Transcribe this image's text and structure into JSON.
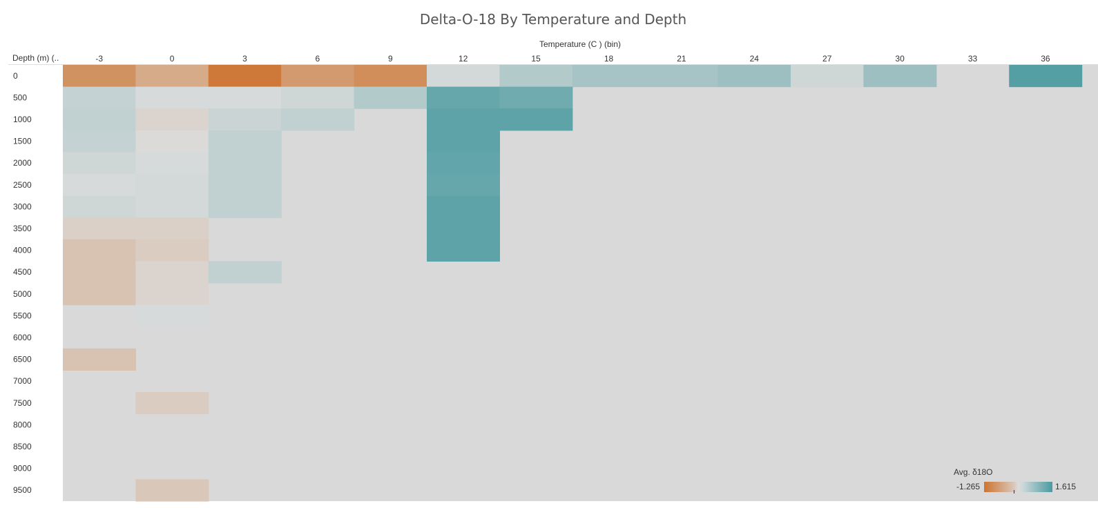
{
  "chart_data": {
    "type": "heatmap",
    "title": "Delta-O-18 By Temperature and Depth",
    "x_header": "Temperature (C ) (bin)",
    "y_header": "Depth (m) (..",
    "x_categories": [
      "-3",
      "0",
      "3",
      "6",
      "9",
      "12",
      "15",
      "18",
      "21",
      "24",
      "27",
      "30",
      "33",
      "36"
    ],
    "y_categories": [
      "0",
      "500",
      "1000",
      "1500",
      "2000",
      "2500",
      "3000",
      "3500",
      "4000",
      "4500",
      "5000",
      "5500",
      "6000",
      "6500",
      "7000",
      "7500",
      "8000",
      "8500",
      "9000",
      "9500"
    ],
    "legend_title": "Avg. δ18O",
    "color_range": [
      -1.265,
      1.615
    ],
    "colors": {
      "low": "#cd7430",
      "mid": "#dcdcdc",
      "high": "#4a9aa0",
      "empty": "#d9d9d9"
    },
    "cells": [
      {
        "x": "-3",
        "y": "0",
        "value": -0.9
      },
      {
        "x": "0",
        "y": "0",
        "value": -0.6
      },
      {
        "x": "3",
        "y": "0",
        "value": -1.2
      },
      {
        "x": "6",
        "y": "0",
        "value": -0.8
      },
      {
        "x": "9",
        "y": "0",
        "value": -0.95
      },
      {
        "x": "12",
        "y": "0",
        "value": 0.1
      },
      {
        "x": "15",
        "y": "0",
        "value": 0.45
      },
      {
        "x": "18",
        "y": "0",
        "value": 0.6
      },
      {
        "x": "21",
        "y": "0",
        "value": 0.6
      },
      {
        "x": "24",
        "y": "0",
        "value": 0.7
      },
      {
        "x": "27",
        "y": "0",
        "value": 0.15
      },
      {
        "x": "30",
        "y": "0",
        "value": 0.7
      },
      {
        "x": "36",
        "y": "0",
        "value": 1.5
      },
      {
        "x": "-3",
        "y": "500",
        "value": 0.25
      },
      {
        "x": "0",
        "y": "500",
        "value": 0.05
      },
      {
        "x": "3",
        "y": "500",
        "value": 0.05
      },
      {
        "x": "6",
        "y": "500",
        "value": 0.15
      },
      {
        "x": "9",
        "y": "500",
        "value": 0.45
      },
      {
        "x": "12",
        "y": "500",
        "value": 1.3
      },
      {
        "x": "15",
        "y": "500",
        "value": 1.2
      },
      {
        "x": "-3",
        "y": "1000",
        "value": 0.3
      },
      {
        "x": "0",
        "y": "1000",
        "value": -0.1
      },
      {
        "x": "3",
        "y": "1000",
        "value": 0.2
      },
      {
        "x": "6",
        "y": "1000",
        "value": 0.3
      },
      {
        "x": "12",
        "y": "1000",
        "value": 1.4
      },
      {
        "x": "15",
        "y": "1000",
        "value": 1.4
      },
      {
        "x": "-3",
        "y": "1500",
        "value": 0.25
      },
      {
        "x": "0",
        "y": "1500",
        "value": -0.02
      },
      {
        "x": "3",
        "y": "1500",
        "value": 0.3
      },
      {
        "x": "12",
        "y": "1500",
        "value": 1.4
      },
      {
        "x": "-3",
        "y": "2000",
        "value": 0.15
      },
      {
        "x": "0",
        "y": "2000",
        "value": 0.05
      },
      {
        "x": "3",
        "y": "2000",
        "value": 0.3
      },
      {
        "x": "12",
        "y": "2000",
        "value": 1.35
      },
      {
        "x": "-3",
        "y": "2500",
        "value": 0.05
      },
      {
        "x": "0",
        "y": "2500",
        "value": 0.1
      },
      {
        "x": "3",
        "y": "2500",
        "value": 0.3
      },
      {
        "x": "12",
        "y": "2500",
        "value": 1.3
      },
      {
        "x": "-3",
        "y": "3000",
        "value": 0.15
      },
      {
        "x": "0",
        "y": "3000",
        "value": 0.1
      },
      {
        "x": "3",
        "y": "3000",
        "value": 0.3
      },
      {
        "x": "12",
        "y": "3000",
        "value": 1.4
      },
      {
        "x": "-3",
        "y": "3500",
        "value": -0.15
      },
      {
        "x": "0",
        "y": "3500",
        "value": -0.15
      },
      {
        "x": "12",
        "y": "3500",
        "value": 1.4
      },
      {
        "x": "-3",
        "y": "4000",
        "value": -0.3
      },
      {
        "x": "0",
        "y": "4000",
        "value": -0.2
      },
      {
        "x": "12",
        "y": "4000",
        "value": 1.4
      },
      {
        "x": "-3",
        "y": "4500",
        "value": -0.3
      },
      {
        "x": "0",
        "y": "4500",
        "value": -0.1
      },
      {
        "x": "3",
        "y": "4500",
        "value": 0.3
      },
      {
        "x": "-3",
        "y": "5000",
        "value": -0.3
      },
      {
        "x": "0",
        "y": "5000",
        "value": -0.1
      },
      {
        "x": "0",
        "y": "5500",
        "value": 0.05
      },
      {
        "x": "-3",
        "y": "6500",
        "value": -0.3
      },
      {
        "x": "0",
        "y": "7500",
        "value": -0.2
      },
      {
        "x": "0",
        "y": "9500",
        "value": -0.25
      }
    ]
  }
}
